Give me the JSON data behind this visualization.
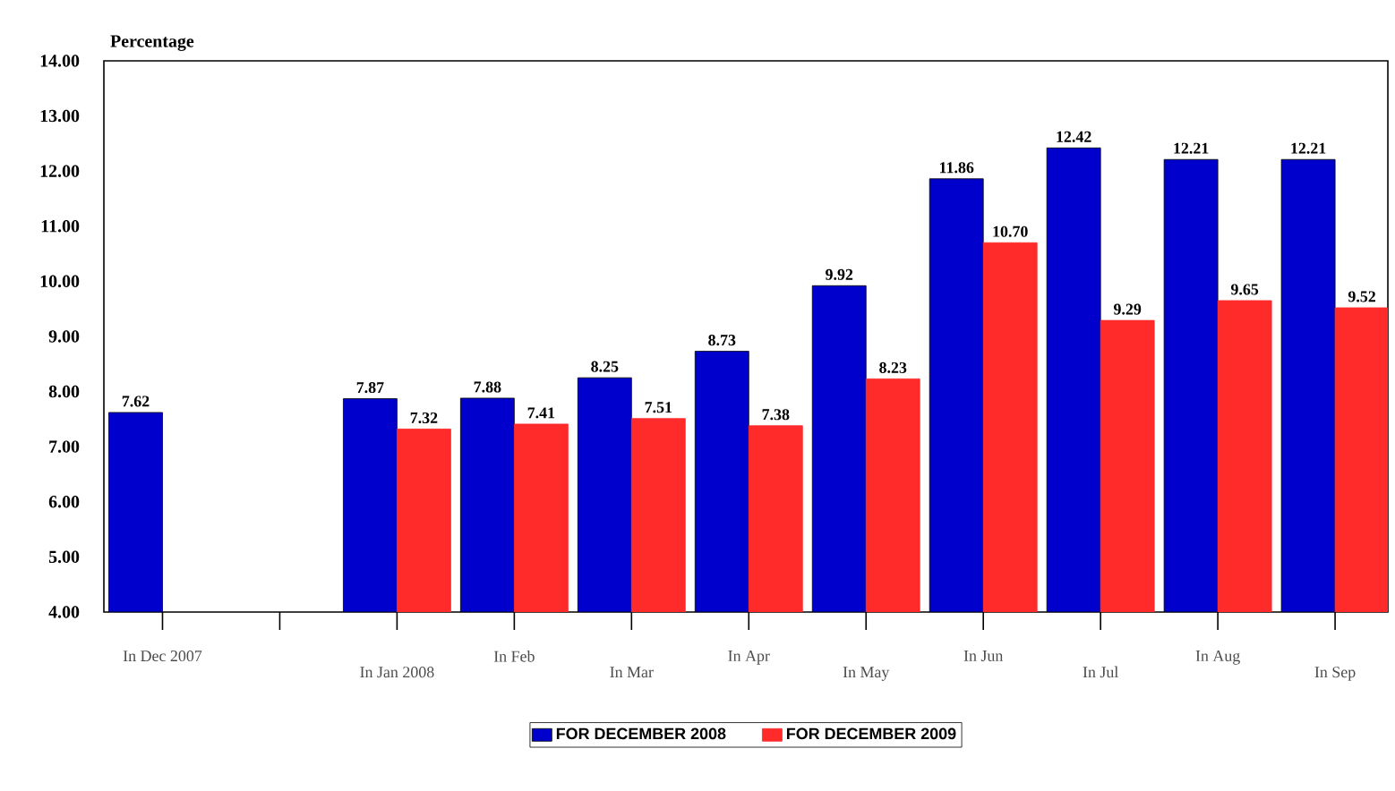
{
  "chart_data": {
    "type": "bar",
    "ylabel": "Percentage",
    "categories": [
      "In Dec 2007",
      null,
      "In Jan 2008",
      "In Feb",
      "In Mar",
      "In Apr",
      "In May",
      "In Jun",
      "In Jul",
      "In Aug",
      "In Sep"
    ],
    "series": [
      {
        "name": "FOR DECEMBER 2008",
        "color": "#0000cc",
        "values": [
          7.62,
          null,
          7.87,
          7.88,
          8.25,
          8.73,
          9.92,
          11.86,
          12.42,
          12.21,
          12.21
        ],
        "value_labels": [
          "7.62",
          null,
          "7.87",
          "7.88",
          "8.25",
          "8.73",
          "9.92",
          "11.86",
          "12.42",
          "12.21",
          "12.21"
        ]
      },
      {
        "name": "FOR DECEMBER 2009",
        "color": "#ff2a2a",
        "values": [
          null,
          null,
          7.32,
          7.41,
          7.51,
          7.38,
          8.23,
          10.7,
          9.29,
          9.65,
          9.52
        ],
        "value_labels": [
          null,
          null,
          "7.32",
          "7.41",
          "7.51",
          "7.38",
          "8.23",
          "10.70",
          "9.29",
          "9.65",
          "9.52"
        ]
      }
    ],
    "ylim": [
      4,
      14
    ],
    "yticks": [
      {
        "value": 4,
        "label": "4.00"
      },
      {
        "value": 5,
        "label": "5.00"
      },
      {
        "value": 6,
        "label": "6.00"
      },
      {
        "value": 7,
        "label": "7.00"
      },
      {
        "value": 8,
        "label": "8.00"
      },
      {
        "value": 9,
        "label": "9.00"
      },
      {
        "value": 10,
        "label": "10.00"
      },
      {
        "value": 11,
        "label": "11.00"
      },
      {
        "value": 12,
        "label": "12.00"
      },
      {
        "value": 13,
        "label": "13.00"
      },
      {
        "value": 14,
        "label": "14.00"
      }
    ],
    "grid": false,
    "legend": "bottom"
  }
}
